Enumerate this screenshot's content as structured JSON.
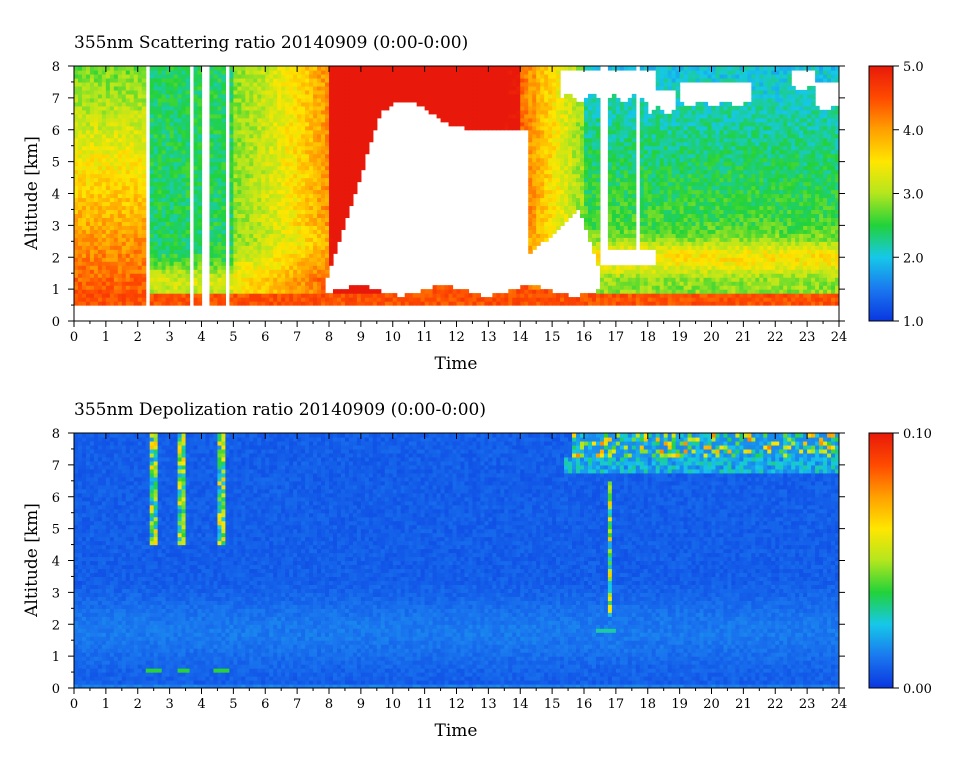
{
  "chart_data": [
    {
      "type": "heatmap",
      "title": "355nm Scattering ratio  20140909 (0:00-0:00)",
      "xlabel": "Time",
      "ylabel": "Altitude [km]",
      "xlim": [
        0,
        24
      ],
      "ylim": [
        0,
        8
      ],
      "x_ticks": [
        "0",
        "1",
        "2",
        "3",
        "4",
        "5",
        "6",
        "7",
        "8",
        "9",
        "10",
        "11",
        "12",
        "13",
        "14",
        "15",
        "16",
        "17",
        "18",
        "19",
        "20",
        "21",
        "22",
        "23",
        "24"
      ],
      "y_ticks": [
        "0",
        "1",
        "2",
        "3",
        "4",
        "5",
        "6",
        "7",
        "8"
      ],
      "colorbar": {
        "range": [
          1.0,
          5.0
        ],
        "labels": [
          "5.0",
          "4.0",
          "3.0",
          "2.0",
          "1.0"
        ]
      },
      "cloud_gap_color": "#ffffff"
    },
    {
      "type": "heatmap",
      "title": "355nm Depolization ratio  20140909 (0:00-0:00)",
      "xlabel": "Time",
      "ylabel": "Altitude [km]",
      "xlim": [
        0,
        24
      ],
      "ylim": [
        0,
        8
      ],
      "x_ticks": [
        "0",
        "1",
        "2",
        "3",
        "4",
        "5",
        "6",
        "7",
        "8",
        "9",
        "10",
        "11",
        "12",
        "13",
        "14",
        "15",
        "16",
        "17",
        "18",
        "19",
        "20",
        "21",
        "22",
        "23",
        "24"
      ],
      "y_ticks": [
        "0",
        "1",
        "2",
        "3",
        "4",
        "5",
        "6",
        "7",
        "8"
      ],
      "colorbar": {
        "range": [
          0.0,
          0.1
        ],
        "labels": [
          "0.10",
          "0.00"
        ]
      }
    }
  ],
  "colormap": [
    "#0a36e0",
    "#1a78ef",
    "#16c8e8",
    "#22d23a",
    "#b4e61e",
    "#ffe600",
    "#ffa000",
    "#ff4a00",
    "#e8190a"
  ]
}
